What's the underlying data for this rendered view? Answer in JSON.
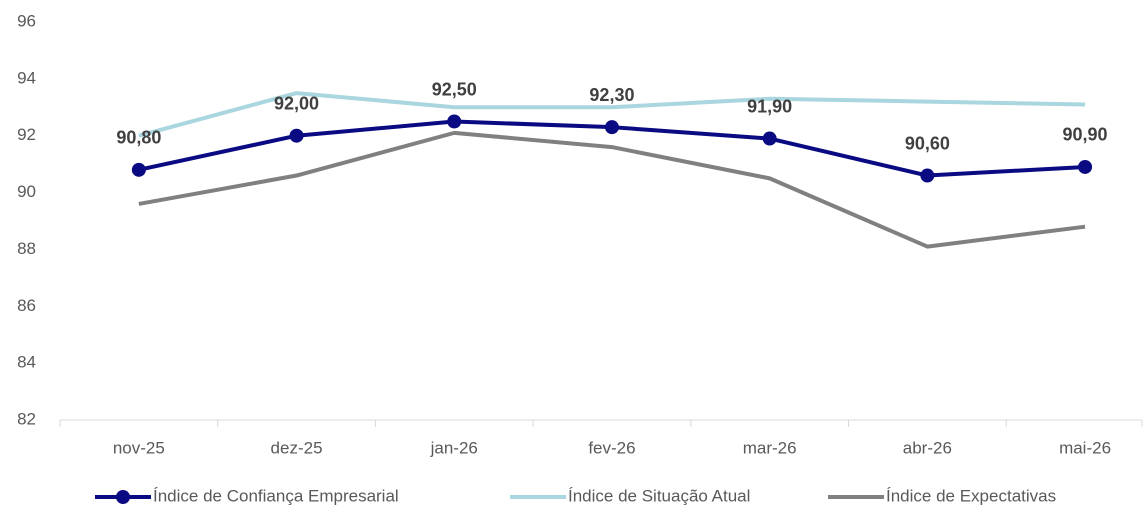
{
  "chart_data": {
    "type": "line",
    "categories": [
      "nov-25",
      "dez-25",
      "jan-26",
      "fev-26",
      "mar-26",
      "abr-26",
      "mai-26"
    ],
    "series": [
      {
        "name": "Índice de Confiança Empresarial",
        "color": "#0a0a82",
        "markers": true,
        "values": [
          90.8,
          92.0,
          92.5,
          92.3,
          91.9,
          90.6,
          90.9
        ],
        "value_labels": [
          "90,80",
          "92,00",
          "92,50",
          "92,30",
          "91,90",
          "90,60",
          "90,90"
        ]
      },
      {
        "name": "Índice de Situação Atual",
        "color": "#a9d6df",
        "markers": false,
        "values": [
          92.0,
          93.5,
          93.0,
          93.0,
          93.3,
          93.2,
          93.1
        ]
      },
      {
        "name": "Índice de Expectativas",
        "color": "#808080",
        "markers": false,
        "values": [
          89.6,
          90.6,
          92.1,
          91.6,
          90.5,
          88.1,
          88.8
        ]
      }
    ],
    "ylim": [
      82,
      96
    ],
    "yticks": [
      82,
      84,
      86,
      88,
      90,
      92,
      94,
      96
    ],
    "grid": false,
    "legend": "bottom"
  }
}
